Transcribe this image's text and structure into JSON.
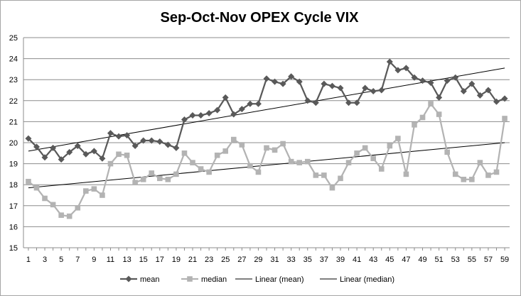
{
  "chart_data": {
    "type": "line",
    "title": "Sep-Oct-Nov OPEX Cycle VIX",
    "xlabel": "",
    "ylabel": "",
    "ylim": [
      15,
      25
    ],
    "yticks": [
      15,
      16,
      17,
      18,
      19,
      20,
      21,
      22,
      23,
      24,
      25
    ],
    "x": [
      1,
      2,
      3,
      4,
      5,
      6,
      7,
      8,
      9,
      10,
      11,
      12,
      13,
      14,
      15,
      16,
      17,
      18,
      19,
      20,
      21,
      22,
      23,
      24,
      25,
      26,
      27,
      28,
      29,
      30,
      31,
      32,
      33,
      34,
      35,
      36,
      37,
      38,
      39,
      40,
      41,
      42,
      43,
      44,
      45,
      46,
      47,
      48,
      49,
      50,
      51,
      52,
      53,
      54,
      55,
      56,
      57,
      58,
      59
    ],
    "xtick_labels": [
      "1",
      "3",
      "5",
      "7",
      "9",
      "11",
      "13",
      "15",
      "17",
      "19",
      "21",
      "23",
      "25",
      "27",
      "29",
      "31",
      "33",
      "35",
      "37",
      "39",
      "41",
      "43",
      "45",
      "47",
      "49",
      "51",
      "53",
      "55",
      "57",
      "59"
    ],
    "grid": true,
    "legend_placement": "bottom",
    "series": [
      {
        "name": "mean",
        "color": "#595959",
        "marker": "diamond",
        "values": [
          20.2,
          19.8,
          19.3,
          19.75,
          19.2,
          19.55,
          19.85,
          19.45,
          19.6,
          19.25,
          20.45,
          20.3,
          20.35,
          19.85,
          20.1,
          20.1,
          20.05,
          19.9,
          19.75,
          21.1,
          21.3,
          21.3,
          21.4,
          21.55,
          22.15,
          21.35,
          21.6,
          21.85,
          21.85,
          23.05,
          22.9,
          22.8,
          23.15,
          22.9,
          22.0,
          21.9,
          22.8,
          22.7,
          22.6,
          21.9,
          21.9,
          22.6,
          22.45,
          22.5,
          23.85,
          23.45,
          23.55,
          23.1,
          22.95,
          22.85,
          22.15,
          22.95,
          23.1,
          22.45,
          22.8,
          22.25,
          22.5,
          21.95,
          22.1
        ]
      },
      {
        "name": "median",
        "color": "#b3b3b3",
        "marker": "square",
        "values": [
          18.15,
          17.85,
          17.35,
          17.05,
          16.55,
          16.5,
          16.9,
          17.7,
          17.8,
          17.5,
          19.0,
          19.45,
          19.4,
          18.1,
          18.25,
          18.55,
          18.3,
          18.25,
          18.5,
          19.5,
          19.05,
          18.75,
          18.6,
          19.4,
          19.6,
          20.15,
          19.9,
          18.9,
          18.6,
          19.75,
          19.65,
          19.95,
          19.1,
          19.05,
          19.1,
          18.45,
          18.45,
          17.85,
          18.3,
          19.05,
          19.5,
          19.75,
          19.25,
          18.75,
          19.85,
          20.2,
          18.5,
          20.85,
          21.2,
          21.85,
          21.35,
          19.55,
          18.5,
          18.25,
          18.25,
          19.05,
          18.45,
          18.6,
          21.15
        ]
      }
    ],
    "trendlines": [
      {
        "name": "Linear (mean)",
        "color": "#000000",
        "start": [
          1,
          19.6
        ],
        "end": [
          59,
          23.55
        ]
      },
      {
        "name": "Linear (median)",
        "color": "#000000",
        "start": [
          1,
          17.85
        ],
        "end": [
          59,
          20.0
        ]
      }
    ]
  }
}
